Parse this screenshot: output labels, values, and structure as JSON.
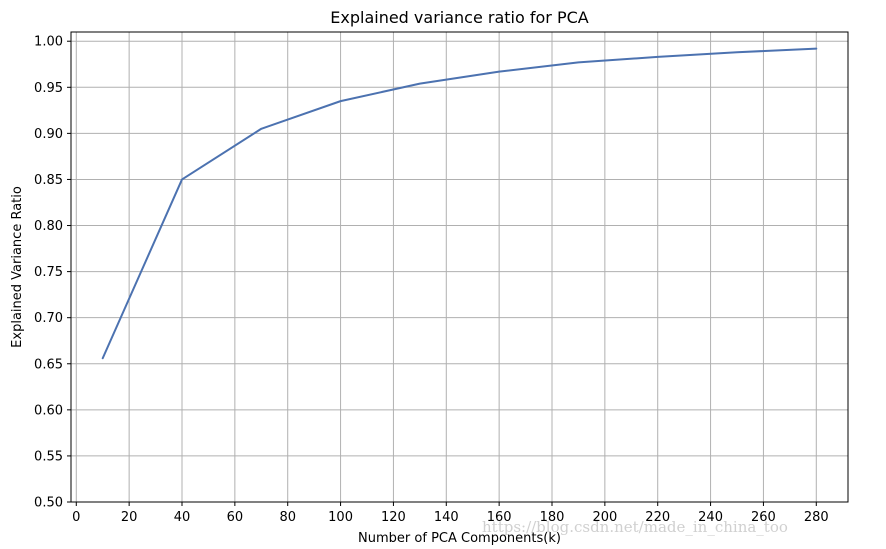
{
  "chart_data": {
    "type": "line",
    "title": "Explained variance ratio for PCA",
    "xlabel": "Number of PCA Components(k)",
    "ylabel": "Explained Variance Ratio",
    "xlim": [
      -2,
      292
    ],
    "ylim": [
      0.5,
      1.01
    ],
    "xticks": [
      0,
      20,
      40,
      60,
      80,
      100,
      120,
      140,
      160,
      180,
      200,
      220,
      240,
      260,
      280
    ],
    "xtick_labels": [
      "0",
      "20",
      "40",
      "60",
      "80",
      "100",
      "120",
      "140",
      "160",
      "180",
      "200",
      "220",
      "240",
      "260",
      "280"
    ],
    "yticks": [
      0.5,
      0.55,
      0.6,
      0.65,
      0.7,
      0.75,
      0.8,
      0.85,
      0.9,
      0.95,
      1.0
    ],
    "ytick_labels": [
      "0.50",
      "0.55",
      "0.60",
      "0.65",
      "0.70",
      "0.75",
      "0.80",
      "0.85",
      "0.90",
      "0.95",
      "1.00"
    ],
    "grid": true,
    "series": [
      {
        "name": "Explained variance ratio",
        "color": "#4c72b0",
        "x": [
          10,
          40,
          70,
          100,
          130,
          160,
          190,
          220,
          250,
          280
        ],
        "y": [
          0.656,
          0.85,
          0.905,
          0.935,
          0.954,
          0.967,
          0.977,
          0.983,
          0.988,
          0.992
        ]
      }
    ]
  },
  "watermark": "https://blog.csdn.net/made_in_china_too"
}
